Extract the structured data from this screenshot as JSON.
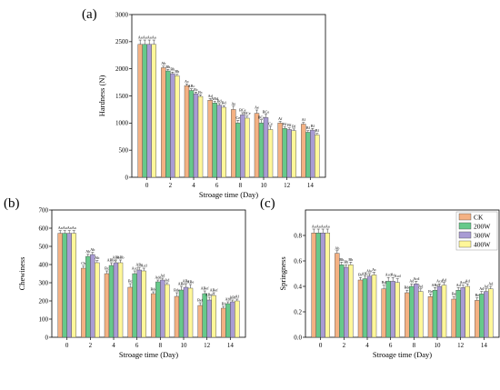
{
  "colors": {
    "CK": "#F4B183",
    "200W": "#66C98A",
    "300W": "#A99BD4",
    "400W": "#FFF79A"
  },
  "legend": {
    "entries": [
      "CK",
      "200W",
      "300W",
      "400W"
    ],
    "placement": "top-right of panel (c)"
  },
  "chart_data": [
    {
      "id": "a",
      "type": "bar",
      "panel_label": "(a)",
      "xlabel": "Stroage time (Day)",
      "ylabel": "Hardness (N)",
      "ylim": [
        0,
        3000
      ],
      "yticks": [
        0,
        500,
        1000,
        1500,
        2000,
        2500,
        3000
      ],
      "categories": [
        "0",
        "2",
        "4",
        "6",
        "8",
        "10",
        "12",
        "14"
      ],
      "series": [
        {
          "name": "CK",
          "values": [
            2450,
            2020,
            1690,
            1420,
            1250,
            1180,
            1000,
            980
          ],
          "errors": [
            80,
            30,
            30,
            30,
            60,
            60,
            30,
            30
          ],
          "labels": [
            "Aa",
            "Ab",
            "Ac",
            "Ad",
            "Ae",
            "Ae",
            "Af",
            "Af"
          ]
        },
        {
          "name": "200W",
          "values": [
            2450,
            1960,
            1600,
            1370,
            1000,
            1000,
            900,
            830
          ],
          "errors": [
            80,
            30,
            30,
            30,
            50,
            60,
            30,
            30
          ],
          "labels": [
            "Aa",
            "Bb",
            "ABc",
            "ABd",
            "Ce",
            "BCe",
            "Bf",
            "Bf"
          ]
        },
        {
          "name": "300W",
          "values": [
            2450,
            1910,
            1540,
            1330,
            1150,
            1100,
            880,
            870
          ],
          "errors": [
            80,
            30,
            30,
            30,
            40,
            60,
            30,
            30
          ],
          "labels": [
            "Aa",
            "Bb",
            "Bc",
            "Bd",
            "BCe",
            "BCe",
            "Bf",
            "Bf"
          ]
        },
        {
          "name": "400W",
          "values": [
            2450,
            1870,
            1490,
            1290,
            1090,
            880,
            860,
            780
          ],
          "errors": [
            80,
            30,
            30,
            30,
            40,
            60,
            30,
            30
          ],
          "labels": [
            "Aa",
            "Bb",
            "Bc",
            "Bd",
            "BCe",
            "Ce",
            "Bf",
            "Bf"
          ]
        }
      ]
    },
    {
      "id": "b",
      "type": "bar",
      "panel_label": "(b)",
      "xlabel": "Stroage time (Day)",
      "ylabel": "Chewiness",
      "ylim": [
        0,
        700
      ],
      "yticks": [
        0,
        100,
        200,
        300,
        400,
        500,
        600,
        700
      ],
      "categories": [
        "0",
        "2",
        "4",
        "6",
        "8",
        "10",
        "12",
        "14"
      ],
      "series": [
        {
          "name": "CK",
          "values": [
            572,
            380,
            350,
            275,
            240,
            225,
            175,
            160
          ],
          "errors": [
            15,
            12,
            15,
            20,
            10,
            20,
            15,
            10
          ],
          "labels": [
            "Aa",
            "Cb",
            "Bc",
            "Bc",
            "Bde",
            "Bde",
            "Bef",
            "Bf"
          ]
        },
        {
          "name": "200W",
          "values": [
            572,
            445,
            395,
            350,
            305,
            260,
            240,
            185
          ],
          "errors": [
            15,
            12,
            15,
            15,
            10,
            20,
            15,
            10
          ],
          "labels": [
            "Aa",
            "Ab",
            "ABbc",
            "Acd",
            "Ade",
            "ABe",
            "ABef",
            "Abf"
          ]
        },
        {
          "name": "300W",
          "values": [
            572,
            455,
            410,
            370,
            315,
            275,
            205,
            195
          ],
          "errors": [
            15,
            12,
            15,
            15,
            10,
            20,
            15,
            10
          ],
          "labels": [
            "Aa",
            "Ab",
            "ABb",
            "ABc",
            "Ad",
            "ABe",
            "ABef",
            "ABf"
          ]
        },
        {
          "name": "400W",
          "values": [
            572,
            410,
            410,
            365,
            290,
            270,
            230,
            200
          ],
          "errors": [
            15,
            12,
            15,
            15,
            10,
            20,
            15,
            10
          ],
          "labels": [
            "Aa",
            "Ab",
            "ABb",
            "Acd",
            "Ad",
            "ABe",
            "ABef",
            "Af"
          ]
        }
      ]
    },
    {
      "id": "c",
      "type": "bar",
      "panel_label": "(c)",
      "xlabel": "Stroage time (Day)",
      "ylabel": "Springness",
      "ylim": [
        0,
        1.0
      ],
      "yticks": [
        0.0,
        0.2,
        0.4,
        0.6,
        0.8
      ],
      "categories": [
        "0",
        "2",
        "4",
        "6",
        "8",
        "10",
        "12",
        "14"
      ],
      "series": [
        {
          "name": "CK",
          "values": [
            0.82,
            0.66,
            0.45,
            0.38,
            0.35,
            0.32,
            0.3,
            0.29
          ],
          "errors": [
            0.03,
            0.02,
            0.02,
            0.03,
            0.02,
            0.02,
            0.02,
            0.02
          ],
          "labels": [
            "Aa",
            "Ab",
            "Bc",
            "Bd",
            "Bde",
            "Be",
            "Be",
            "Be"
          ]
        },
        {
          "name": "200W",
          "values": [
            0.82,
            0.57,
            0.46,
            0.44,
            0.4,
            0.37,
            0.37,
            0.34
          ],
          "errors": [
            0.03,
            0.02,
            0.02,
            0.03,
            0.02,
            0.02,
            0.02,
            0.02
          ],
          "labels": [
            "Aa",
            "Bb",
            "ABc",
            "Acd",
            "Ad",
            "ABd",
            "Ad",
            "Ad"
          ]
        },
        {
          "name": "300W",
          "values": [
            0.82,
            0.55,
            0.48,
            0.44,
            0.42,
            0.4,
            0.39,
            0.36
          ],
          "errors": [
            0.03,
            0.02,
            0.02,
            0.03,
            0.02,
            0.02,
            0.02,
            0.02
          ],
          "labels": [
            "Aa",
            "Bb",
            "Abc",
            "Ac",
            "Acd",
            "Acd",
            "Acd",
            "Ad"
          ]
        },
        {
          "name": "400W",
          "values": [
            0.82,
            0.57,
            0.49,
            0.43,
            0.36,
            0.41,
            0.4,
            0.38
          ],
          "errors": [
            0.03,
            0.02,
            0.02,
            0.03,
            0.02,
            0.02,
            0.02,
            0.02
          ],
          "labels": [
            "Aa",
            "Bb",
            "Ac",
            "Acd",
            "Ad",
            "Ad",
            "Ad",
            "Ad"
          ]
        }
      ]
    }
  ]
}
